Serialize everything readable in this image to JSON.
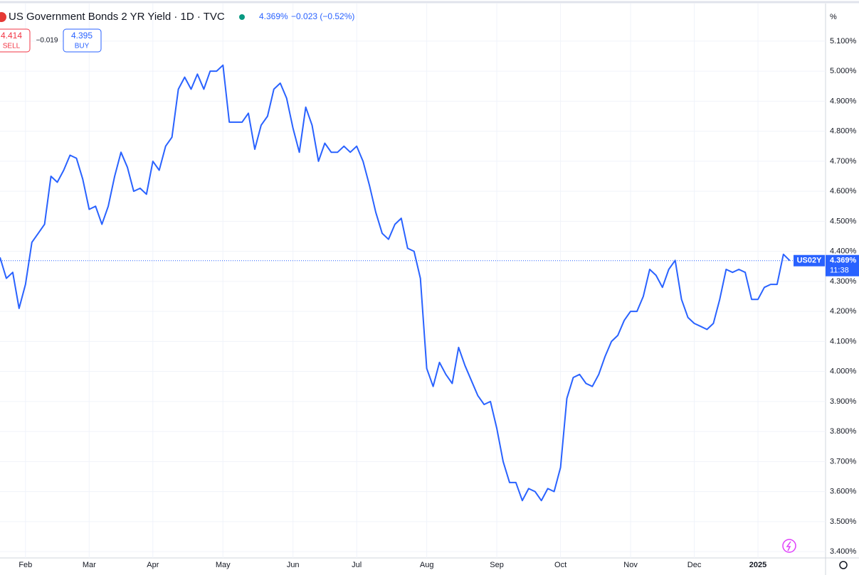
{
  "header": {
    "title": "US Government Bonds 2 YR Yield · 1D · TVC",
    "last": "4.369%",
    "change": "−0.023 (−0.52%)"
  },
  "trade": {
    "sell_price": "4.414",
    "sell": "SELL",
    "spread": "−0.019",
    "buy_price": "4.395",
    "buy": "BUY"
  },
  "chart_data": {
    "type": "line",
    "color": "#2962ff",
    "grid": true,
    "y_unit": "%",
    "categories": [
      null,
      null,
      null,
      null,
      "Feb",
      null,
      null,
      null,
      null,
      null,
      null,
      null,
      null,
      null,
      "Mar",
      null,
      null,
      null,
      null,
      null,
      null,
      null,
      null,
      null,
      "Apr",
      null,
      null,
      null,
      null,
      null,
      null,
      null,
      null,
      null,
      null,
      "May",
      null,
      null,
      null,
      null,
      null,
      null,
      null,
      null,
      null,
      null,
      "Jun",
      null,
      null,
      null,
      null,
      null,
      null,
      null,
      null,
      null,
      "Jul",
      null,
      null,
      null,
      null,
      null,
      null,
      null,
      null,
      null,
      null,
      "Aug",
      null,
      null,
      null,
      null,
      null,
      null,
      null,
      null,
      null,
      null,
      "Sep",
      null,
      null,
      null,
      null,
      null,
      null,
      null,
      null,
      null,
      "Oct",
      null,
      null,
      null,
      null,
      null,
      null,
      null,
      null,
      null,
      null,
      "Nov",
      null,
      null,
      null,
      null,
      null,
      null,
      null,
      null,
      null,
      "Dec",
      null,
      null,
      null,
      null,
      null,
      null,
      null,
      null,
      null,
      "2025",
      null,
      null,
      null,
      null,
      null
    ],
    "values": [
      4.38,
      4.31,
      4.33,
      4.21,
      4.29,
      4.43,
      4.46,
      4.49,
      4.65,
      4.63,
      4.67,
      4.72,
      4.71,
      4.64,
      4.54,
      4.55,
      4.49,
      4.55,
      4.65,
      4.73,
      4.68,
      4.6,
      4.61,
      4.59,
      4.7,
      4.67,
      4.75,
      4.78,
      4.94,
      4.98,
      4.94,
      4.99,
      4.94,
      5.0,
      5.0,
      5.02,
      4.83,
      4.83,
      4.83,
      4.86,
      4.74,
      4.82,
      4.85,
      4.94,
      4.96,
      4.91,
      4.81,
      4.73,
      4.88,
      4.82,
      4.7,
      4.76,
      4.73,
      4.73,
      4.75,
      4.73,
      4.75,
      4.7,
      4.62,
      4.53,
      4.46,
      4.44,
      4.49,
      4.51,
      4.41,
      4.4,
      4.31,
      4.01,
      3.95,
      4.03,
      3.99,
      3.96,
      4.08,
      4.02,
      3.97,
      3.92,
      3.89,
      3.9,
      3.81,
      3.7,
      3.63,
      3.63,
      3.57,
      3.61,
      3.6,
      3.57,
      3.61,
      3.6,
      3.68,
      3.91,
      3.98,
      3.99,
      3.96,
      3.95,
      3.99,
      4.05,
      4.1,
      4.12,
      4.17,
      4.2,
      4.2,
      4.25,
      4.34,
      4.32,
      4.28,
      4.34,
      4.37,
      4.24,
      4.18,
      4.16,
      4.15,
      4.14,
      4.16,
      4.24,
      4.34,
      4.33,
      4.34,
      4.33,
      4.24,
      4.24,
      4.28,
      4.29,
      4.29,
      4.39,
      4.369
    ],
    "ylim": [
      3.379,
      5.218
    ],
    "yticks": [
      {
        "value": 5.1,
        "label": "5.100%"
      },
      {
        "value": 5.0,
        "label": "5.000%"
      },
      {
        "value": 4.9,
        "label": "4.900%"
      },
      {
        "value": 4.8,
        "label": "4.800%"
      },
      {
        "value": 4.7,
        "label": "4.700%"
      },
      {
        "value": 4.6,
        "label": "4.600%"
      },
      {
        "value": 4.5,
        "label": "4.500%"
      },
      {
        "value": 4.4,
        "label": "4.400%"
      },
      {
        "value": 4.3,
        "label": "4.300%"
      },
      {
        "value": 4.2,
        "label": "4.200%"
      },
      {
        "value": 4.1,
        "label": "4.100%"
      },
      {
        "value": 4.0,
        "label": "4.000%"
      },
      {
        "value": 3.9,
        "label": "3.900%"
      },
      {
        "value": 3.8,
        "label": "3.800%"
      },
      {
        "value": 3.7,
        "label": "3.700%"
      },
      {
        "value": 3.6,
        "label": "3.600%"
      },
      {
        "value": 3.5,
        "label": "3.500%"
      },
      {
        "value": 3.4,
        "label": "3.400%"
      }
    ],
    "price_label": {
      "symbol": "US02Y",
      "value": 4.369,
      "label": "4.369%",
      "countdown": "11:38"
    }
  }
}
